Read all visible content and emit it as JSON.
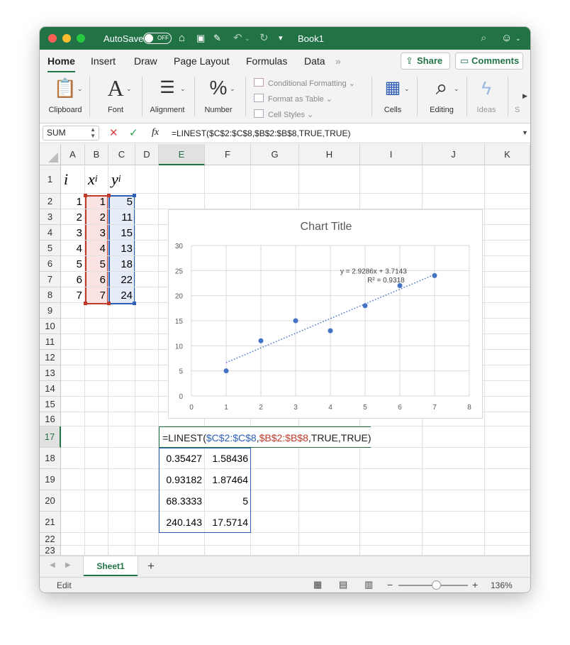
{
  "titlebar": {
    "autosave_label": "AutoSave",
    "autosave_state": "OFF",
    "title": "Book1"
  },
  "ribbon": {
    "tabs": [
      "Home",
      "Insert",
      "Draw",
      "Page Layout",
      "Formulas",
      "Data"
    ],
    "more": "»",
    "share": "Share",
    "comments": "Comments"
  },
  "toolbar": {
    "clipboard": "Clipboard",
    "font": "Font",
    "alignment": "Alignment",
    "number": "Number",
    "conditional_formatting": "Conditional Formatting",
    "format_as_table": "Format as Table",
    "cell_styles": "Cell Styles",
    "cells": "Cells",
    "editing": "Editing",
    "ideas": "Ideas",
    "truncated": "S"
  },
  "formula_bar": {
    "name_box": "SUM",
    "formula": "=LINEST($C$2:$C$8,$B$2:$B$8,TRUE,TRUE)"
  },
  "columns": [
    "A",
    "B",
    "C",
    "D",
    "E",
    "F",
    "G",
    "H",
    "I",
    "J",
    "K"
  ],
  "rows": [
    "1",
    "2",
    "3",
    "4",
    "5",
    "6",
    "7",
    "8",
    "9",
    "10",
    "11",
    "12",
    "13",
    "14",
    "15",
    "16",
    "17",
    "18",
    "19",
    "20",
    "21",
    "22",
    "23"
  ],
  "headers": {
    "i": "i",
    "x": "x",
    "x_sub": "i",
    "y": "y",
    "y_sub": "i"
  },
  "table": {
    "a": [
      "1",
      "2",
      "3",
      "4",
      "5",
      "6",
      "7"
    ],
    "b": [
      "1",
      "2",
      "3",
      "4",
      "5",
      "6",
      "7"
    ],
    "c": [
      "5",
      "11",
      "15",
      "13",
      "18",
      "22",
      "24"
    ]
  },
  "linest": {
    "prefix": "=LINEST(",
    "range1": "$C$2:$C$8",
    "comma": ",",
    "range2": "$B$2:$B$8",
    "suffix": ",TRUE,TRUE)",
    "e": [
      "0.35427",
      "0.93182",
      "68.3333",
      "240.143"
    ],
    "f": [
      "1.58436",
      "1.87464",
      "5",
      "17.5714"
    ]
  },
  "chart_data": {
    "type": "scatter",
    "title": "Chart Title",
    "x": [
      1,
      2,
      3,
      4,
      5,
      6,
      7
    ],
    "y": [
      5,
      11,
      15,
      13,
      18,
      22,
      24
    ],
    "xlim": [
      0,
      8
    ],
    "ylim": [
      0,
      30
    ],
    "xticks": [
      "0",
      "1",
      "2",
      "3",
      "4",
      "5",
      "6",
      "7",
      "8"
    ],
    "yticks": [
      "0",
      "5",
      "10",
      "15",
      "20",
      "25",
      "30"
    ],
    "grid": true,
    "trendline": {
      "slope": 2.9286,
      "intercept": 3.7143,
      "equation": "y = 2.9286x + 3.7143",
      "r2": "R² = 0.9318"
    },
    "colors": {
      "marker": "#4472c4",
      "grid": "#d9d9d9"
    }
  },
  "sheet": {
    "active": "Sheet1",
    "add": "+"
  },
  "status": {
    "mode": "Edit",
    "zoom": "136%"
  },
  "colors": {
    "accent": "#217346",
    "range_blue": "#2e5fb7",
    "range_red": "#c0392b"
  }
}
